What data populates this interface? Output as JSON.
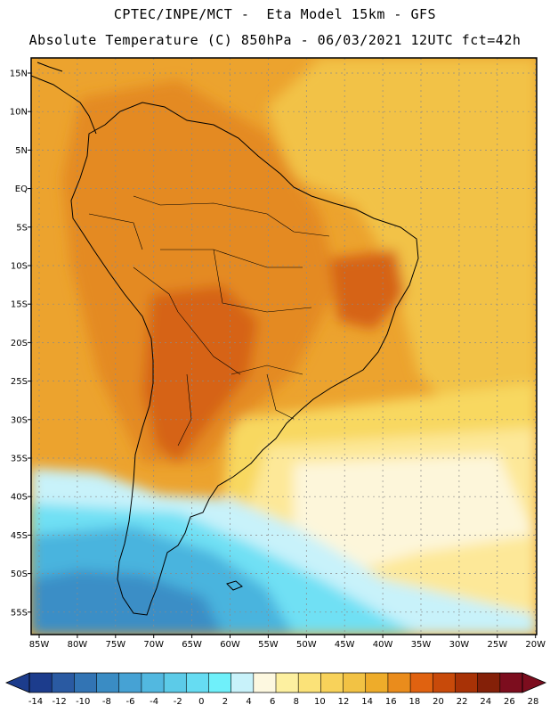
{
  "header": {
    "line1": "CPTEC/INPE/MCT -  Eta Model 15km - GFS",
    "line2": "Absolute Temperature (C) 850hPa - 06/03/2021 12UTC fct=42h"
  },
  "axes": {
    "lat_labels": [
      "15N",
      "10N",
      "5N",
      "EQ",
      "5S",
      "10S",
      "15S",
      "20S",
      "25S",
      "30S",
      "35S",
      "40S",
      "45S",
      "50S",
      "55S"
    ],
    "lon_labels": [
      "85W",
      "80W",
      "75W",
      "70W",
      "65W",
      "60W",
      "55W",
      "50W",
      "45W",
      "40W",
      "35W",
      "30W",
      "25W",
      "20W"
    ]
  },
  "colorbar": {
    "labels": [
      "-14",
      "-12",
      "-10",
      "-8",
      "-6",
      "-4",
      "-2",
      "0",
      "2",
      "4",
      "6",
      "8",
      "10",
      "12",
      "14",
      "16",
      "18",
      "20",
      "22",
      "24",
      "26",
      "28"
    ],
    "colors": [
      "#1c3c8c",
      "#2a5aa2",
      "#3274b4",
      "#3a8cc4",
      "#46a2d4",
      "#52b8e0",
      "#5ccbe8",
      "#66dcf2",
      "#6ff0fa",
      "#c8f2fa",
      "#fdf8e0",
      "#fdf0a0",
      "#fbe278",
      "#f8d25a",
      "#f2c244",
      "#eeac2a",
      "#ea8c1c",
      "#e06210",
      "#c84a0a",
      "#a83206",
      "#842008",
      "#7c0d1e"
    ]
  },
  "map": {
    "field_colors": {
      "hot": "#d66418",
      "warm": "#e48a22",
      "mild": "#eca32e",
      "moderate": "#f2c246",
      "cool": "#f8d860",
      "pale": "#fde898",
      "cream": "#fdf6da",
      "cyan_light": "#c8f2fa",
      "cyan": "#70e0f4",
      "blue": "#4ab4de",
      "deep_blue": "#3a8ec6"
    }
  }
}
